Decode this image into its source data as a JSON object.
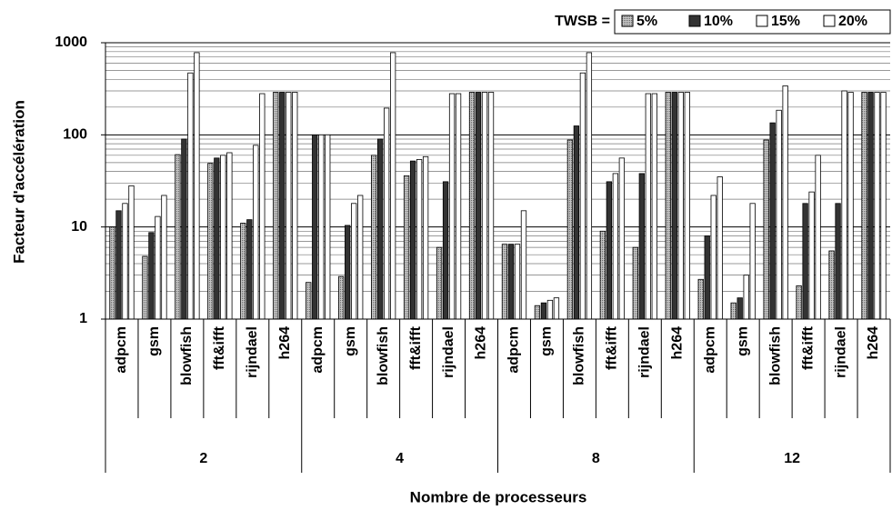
{
  "chart_data": {
    "type": "bar",
    "y_scale": "log",
    "grid": true,
    "legend_position": "top-right",
    "legend_title": "TWSB =",
    "y_label": "Facteur d'accélération",
    "x_label": "Nombre de processeurs",
    "ylim": [
      1,
      1000
    ],
    "yticks": [
      1,
      10,
      100,
      1000
    ],
    "categories": [
      "adpcm",
      "gsm",
      "blowfish",
      "fft&ifft",
      "rijndael",
      "h264",
      "adpcm",
      "gsm",
      "blowfish",
      "fft&ifft",
      "rijndael",
      "h264",
      "adpcm",
      "gsm",
      "blowfish",
      "fft&ifft",
      "rijndael",
      "h264",
      "adpcm",
      "gsm",
      "blowfish",
      "fft&ifft",
      "rijndael",
      "h264"
    ],
    "groups": [
      "2",
      "4",
      "8",
      "12"
    ],
    "series": [
      {
        "name": "5%",
        "color": "#c4c4c4",
        "values": [
          10,
          4.8,
          61,
          49,
          11,
          290,
          2.5,
          2.9,
          60,
          36,
          6,
          290,
          6.5,
          1.4,
          88,
          9,
          6,
          290,
          2.7,
          1.5,
          88,
          2.3,
          5.5,
          290
        ]
      },
      {
        "name": "10%",
        "color": "#333333",
        "values": [
          15,
          8.7,
          90,
          56,
          12,
          290,
          100,
          10.4,
          90,
          52,
          31,
          290,
          6.5,
          1.5,
          125,
          31,
          38,
          290,
          8,
          1.7,
          135,
          18,
          18,
          290
        ]
      },
      {
        "name": "15%",
        "color": "#ffffff",
        "values": [
          18,
          13,
          470,
          60,
          77,
          290,
          100,
          18,
          195,
          54,
          280,
          290,
          6.5,
          1.6,
          470,
          38,
          280,
          290,
          22,
          3,
          185,
          24,
          300,
          290
        ]
      },
      {
        "name": "20%",
        "color": "#ffffff",
        "values": [
          28,
          22,
          780,
          64,
          280,
          290,
          100,
          22,
          780,
          58,
          280,
          290,
          15,
          1.7,
          780,
          56,
          280,
          290,
          35,
          18,
          340,
          60,
          290,
          290
        ]
      }
    ]
  }
}
